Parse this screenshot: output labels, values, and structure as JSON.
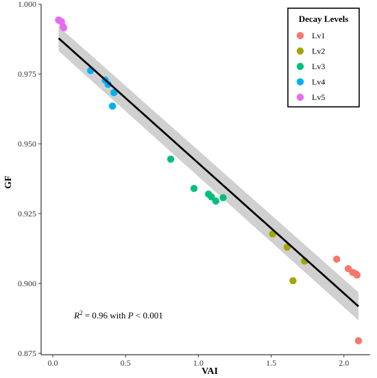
{
  "chart_data": {
    "type": "scatter",
    "xlabel": "VAI",
    "ylabel": "GF",
    "xlim": [
      -0.08,
      2.18
    ],
    "ylim": [
      0.8745,
      1.0
    ],
    "x_ticks": [
      0.0,
      0.5,
      1.0,
      1.5,
      2.0
    ],
    "x_tick_labels": [
      "0.0",
      "0.5",
      "1.0",
      "1.5",
      "2.0"
    ],
    "y_ticks": [
      0.875,
      0.9,
      0.925,
      0.95,
      0.975,
      1.0
    ],
    "y_tick_labels": [
      "0.875",
      "0.900",
      "0.925",
      "0.950",
      "0.975",
      "1.000"
    ],
    "grid": false,
    "legend": {
      "title": "Decay Levels",
      "placement": "top-right"
    },
    "series": [
      {
        "name": "Lv1",
        "color": "#F8766D",
        "x": [
          1.95,
          2.03,
          2.06,
          2.08,
          2.09,
          2.1
        ],
        "y": [
          0.9087,
          0.9053,
          0.904,
          0.9035,
          0.903,
          0.8795
        ]
      },
      {
        "name": "Lv2",
        "color": "#A3A500",
        "x": [
          1.51,
          1.61,
          1.65,
          1.73
        ],
        "y": [
          0.9177,
          0.913,
          0.901,
          0.908
        ]
      },
      {
        "name": "Lv3",
        "color": "#00BF7D",
        "x": [
          0.81,
          0.97,
          1.07,
          1.09,
          1.12,
          1.17
        ],
        "y": [
          0.9445,
          0.934,
          0.932,
          0.931,
          0.9295,
          0.9307
        ]
      },
      {
        "name": "Lv4",
        "color": "#00B0F6",
        "x": [
          0.26,
          0.36,
          0.38,
          0.42,
          0.41
        ],
        "y": [
          0.9762,
          0.9728,
          0.9713,
          0.9683,
          0.9635
        ]
      },
      {
        "name": "Lv5",
        "color": "#E76BF3",
        "x": [
          0.04,
          0.05,
          0.06,
          0.07,
          0.075
        ],
        "y": [
          0.9943,
          0.994,
          0.9937,
          0.992,
          0.9915
        ]
      }
    ],
    "fit": {
      "x": [
        0.04,
        2.1
      ],
      "y": [
        0.9878,
        0.8918
      ],
      "ci_upper": [
        0.992,
        0.8968
      ],
      "ci_lower": [
        0.9832,
        0.8868
      ]
    },
    "annotation": {
      "r_label": "R",
      "r_superscript": "2",
      "text": " = 0.96 with ",
      "p_label": "P",
      "p_text": " < 0.001"
    }
  }
}
